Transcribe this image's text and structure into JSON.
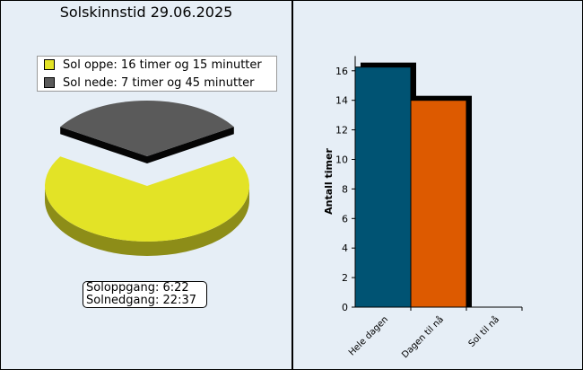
{
  "pie": {
    "title": "Solskinnstid 29.06.2025",
    "sunrise_text": "Soloppgang: 6:22",
    "sunset_text": "Solnedgang: 22:37"
  },
  "chart_data": [
    {
      "type": "pie",
      "title": "Solskinnstid 29.06.2025",
      "slices": [
        {
          "label": "Sol oppe: 16 timer og 15 minutter",
          "value": 16.25,
          "color": "#e3e326"
        },
        {
          "label": "Sol nede: 7 timer og 45 minutter",
          "value": 7.75,
          "color": "#5a5a5a"
        }
      ],
      "legend_position": "top"
    },
    {
      "type": "bar",
      "categories": [
        "Hele dagen",
        "Dagen til nå",
        "Sol til nå"
      ],
      "values": [
        16.25,
        14,
        0
      ],
      "colors": [
        "#005373",
        "#dd5a00",
        "#dd5a00"
      ],
      "ylabel": "Antall timer",
      "ylim": [
        0,
        17
      ],
      "yticks": [
        0,
        2,
        4,
        6,
        8,
        10,
        12,
        14,
        16
      ]
    }
  ]
}
